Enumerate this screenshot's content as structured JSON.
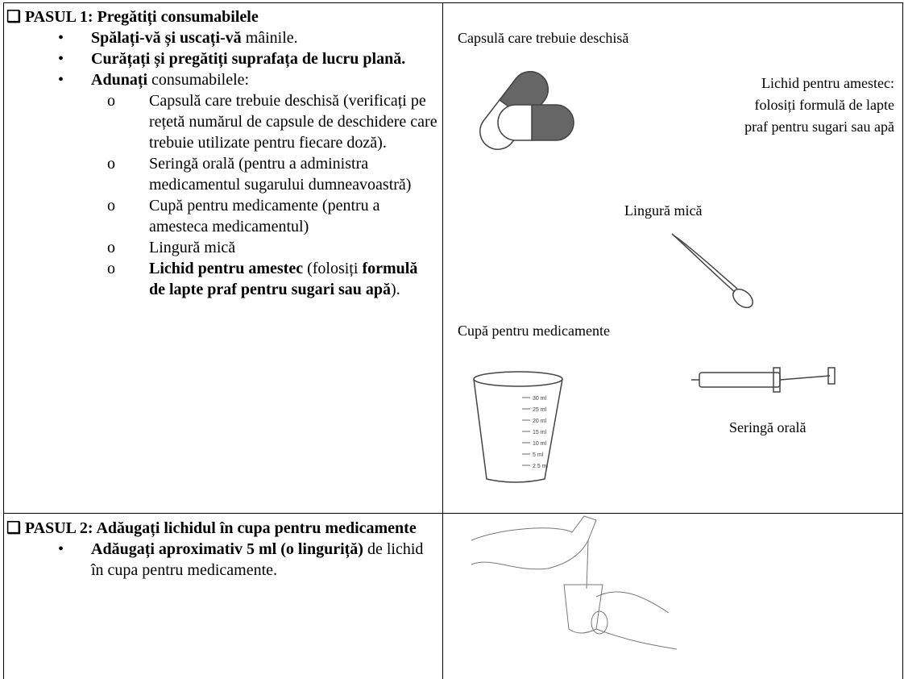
{
  "steps": [
    {
      "heading": "❑ PASUL 1: Pregătiți consumabilele",
      "items": [
        {
          "marker": "•",
          "runs": [
            {
              "text": "Spălați-vă și uscați-vă",
              "bold": true
            },
            {
              "text": " mâinile.",
              "bold": false
            }
          ]
        },
        {
          "marker": "•",
          "runs": [
            {
              "text": "Curățați și pregătiți suprafața de lucru plană.",
              "bold": true
            }
          ]
        },
        {
          "marker": "•",
          "runs": [
            {
              "text": "Adunați",
              "bold": true
            },
            {
              "text": " consumabilele:",
              "bold": false
            }
          ]
        },
        {
          "marker": "o",
          "runs": [
            {
              "text": "Capsulă care trebuie deschisă (verificați pe rețetă numărul de capsule de deschidere care trebuie utilizate pentru fiecare doză).",
              "bold": false
            }
          ]
        },
        {
          "marker": "o",
          "runs": [
            {
              "text": "Seringă orală (pentru a administra medicamentul sugarului dumneavoastră)",
              "bold": false
            }
          ]
        },
        {
          "marker": "o",
          "runs": [
            {
              "text": "Cupă pentru medicamente (pentru a amesteca medicamentul)",
              "bold": false
            }
          ]
        },
        {
          "marker": "o",
          "runs": [
            {
              "text": "Lingură mică",
              "bold": false
            }
          ]
        },
        {
          "marker": "o",
          "runs": [
            {
              "text": "Lichid pentru amestec",
              "bold": true
            },
            {
              "text": " (folosiți ",
              "bold": false
            },
            {
              "text": "formulă de lapte praf pentru sugari sau apă",
              "bold": true
            },
            {
              "text": ").",
              "bold": false
            }
          ]
        }
      ]
    },
    {
      "heading": "❑ PASUL 2: Adăugați lichidul în cupa pentru medicamente",
      "items": [
        {
          "marker": "•",
          "runs": [
            {
              "text": "Adăugați aproximativ 5 ml (o linguriță)",
              "bold": true
            },
            {
              "text": " de lichid în cupa pentru medicamente.",
              "bold": false
            }
          ]
        }
      ]
    }
  ],
  "figures": {
    "capsule_caption": "Capsulă care trebuie deschisă",
    "liquid_caption": [
      "Lichid pentru amestec:",
      "folosiți formulă de lapte",
      "praf pentru sugari sau apă"
    ],
    "spoon_caption": "Lingură mică",
    "cup_caption": "Cupă pentru medicamente",
    "syringe_caption": "Seringă orală",
    "cup_scale": [
      "30 ml",
      "25 ml",
      "20 ml",
      "15 ml",
      "10 ml",
      "5 ml",
      "2.5 ml"
    ]
  }
}
